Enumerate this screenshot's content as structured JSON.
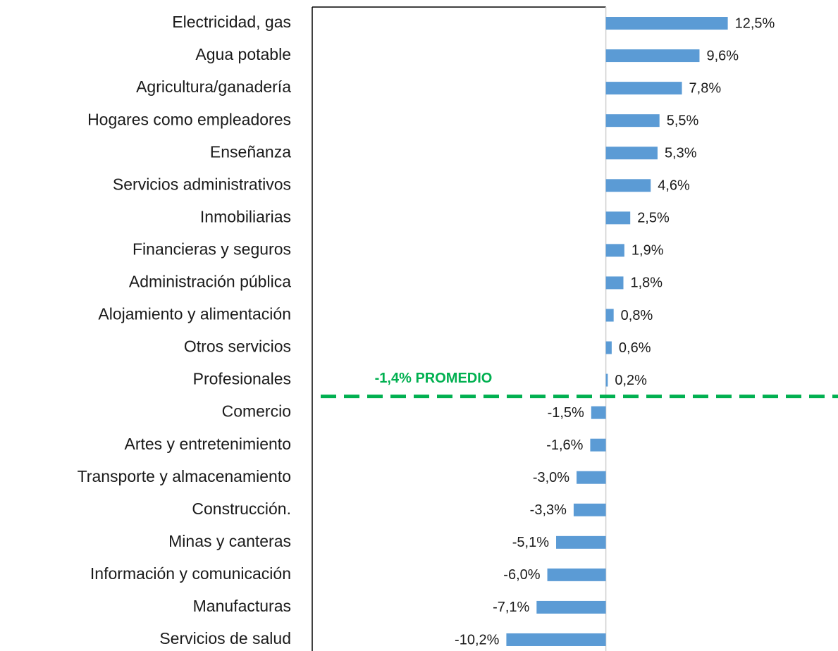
{
  "chart_data": {
    "type": "bar",
    "orientation": "horizontal",
    "categories": [
      "Electricidad, gas",
      "Agua potable",
      "Agricultura/ganadería",
      "Hogares como empleadores",
      "Enseñanza",
      "Servicios administrativos",
      "Inmobiliarias",
      "Financieras y seguros",
      "Administración pública",
      "Alojamiento y alimentación",
      "Otros servicios",
      "Profesionales",
      "Comercio",
      "Artes y entretenimiento",
      "Transporte y almacenamiento",
      "Construcción.",
      "Minas y canteras",
      "Información y comunicación",
      "Manufacturas",
      "Servicios de salud"
    ],
    "values": [
      12.5,
      9.6,
      7.8,
      5.5,
      5.3,
      4.6,
      2.5,
      1.9,
      1.8,
      0.8,
      0.6,
      0.2,
      -1.5,
      -1.6,
      -3.0,
      -3.3,
      -5.1,
      -6.0,
      -7.1,
      -10.2
    ],
    "value_labels": [
      "12,5%",
      "9,6%",
      "7,8%",
      "5,5%",
      "5,3%",
      "4,6%",
      "2,5%",
      "1,9%",
      "1,8%",
      "0,8%",
      "0,6%",
      "0,2%",
      "-1,5%",
      "-1,6%",
      "-3,0%",
      "-3,3%",
      "-5,1%",
      "-6,0%",
      "-7,1%",
      "-10,2%"
    ],
    "color": "#5b9bd5",
    "xlim": [
      -30.1,
      23.8
    ],
    "average": {
      "value": -1.4,
      "label": "-1,4% PROMEDIO",
      "color": "#00b050"
    }
  }
}
